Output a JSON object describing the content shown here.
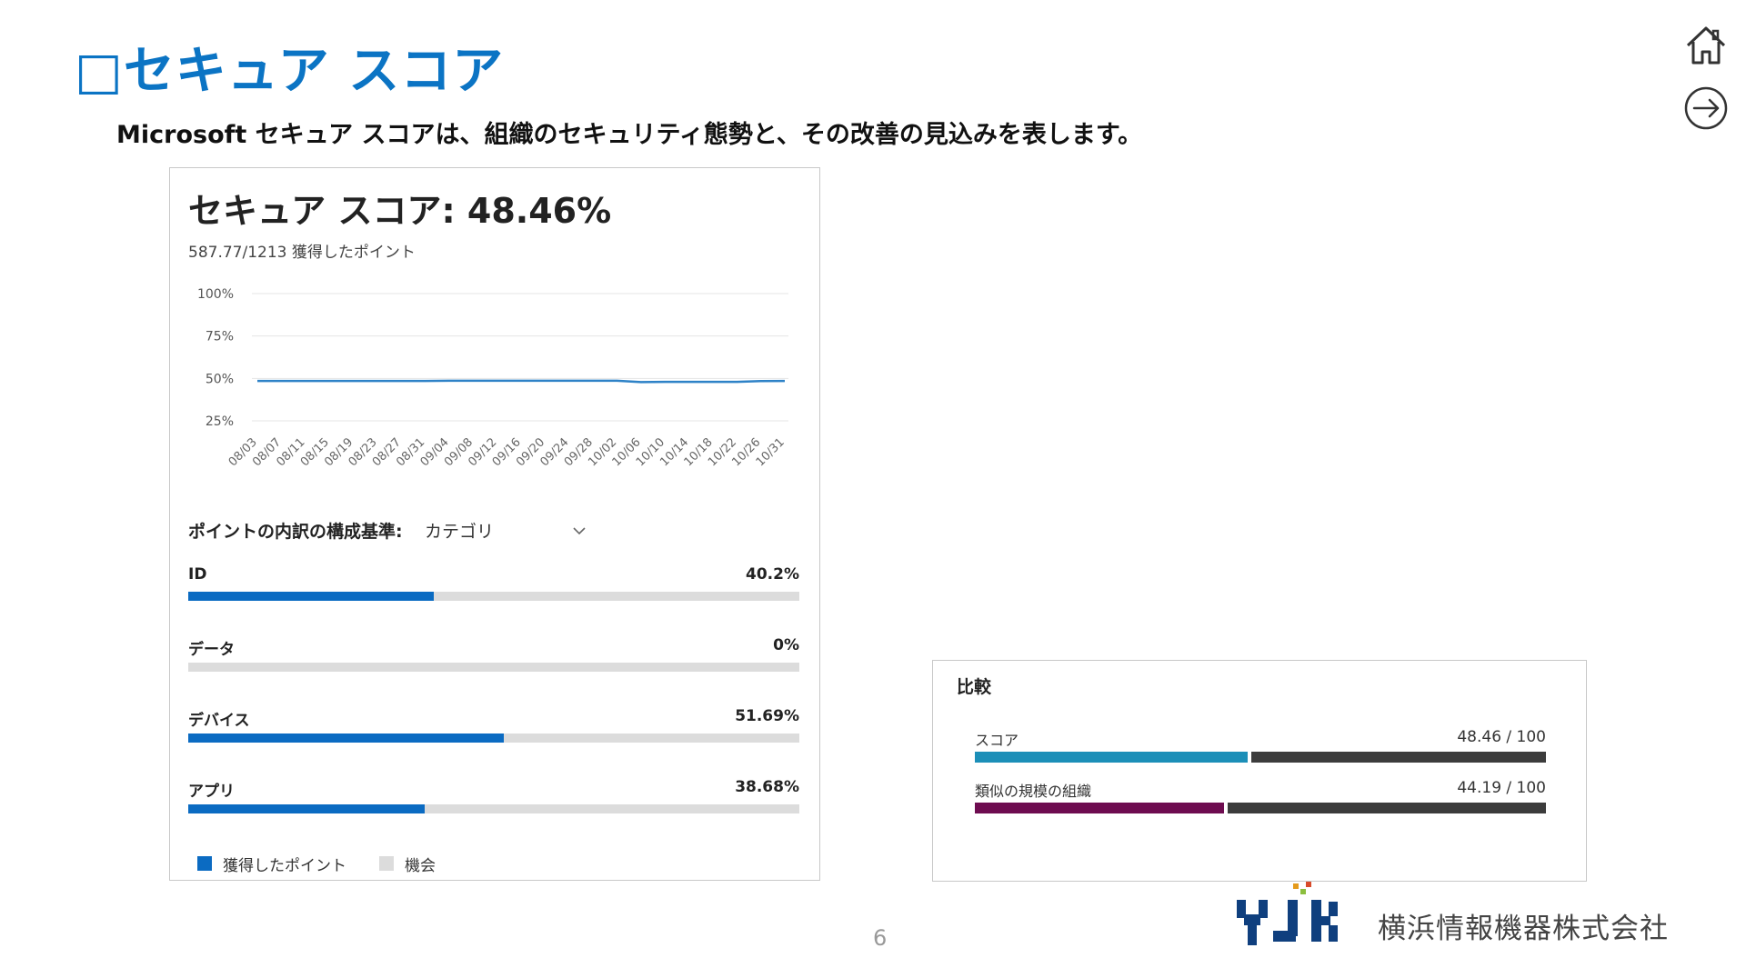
{
  "slide": {
    "title": "□セキュア スコア",
    "subtitle": "Microsoft セキュア スコアは、組織のセキュリティ態勢と、その改善の見込みを表します。",
    "page_number": "6"
  },
  "nav": {
    "home_icon": "home-icon",
    "next_icon": "arrow-right-circle-icon"
  },
  "score_card": {
    "title": "セキュア スコア: 48.46%",
    "points": "587.77/1213 獲得したポイント",
    "breakdown_label": "ポイントの内訳の構成基準:",
    "breakdown_value": "カテゴリ",
    "categories": [
      {
        "name": "ID",
        "pct_label": "40.2%",
        "value": 40.2
      },
      {
        "name": "データ",
        "pct_label": "0%",
        "value": 0
      },
      {
        "name": "デバイス",
        "pct_label": "51.69%",
        "value": 51.69
      },
      {
        "name": "アプリ",
        "pct_label": "38.68%",
        "value": 38.68
      }
    ],
    "legend": [
      {
        "label": "獲得したポイント",
        "color": "#0b6bc2"
      },
      {
        "label": "機会",
        "color": "#dcdcdc"
      }
    ]
  },
  "chart_data": {
    "type": "line",
    "title": "",
    "xlabel": "",
    "ylabel": "",
    "y_ticks": [
      "100%",
      "75%",
      "50%",
      "25%"
    ],
    "ylim": [
      25,
      100
    ],
    "grid": true,
    "color": "#2e82c7",
    "x": [
      "08/03",
      "08/07",
      "08/11",
      "08/15",
      "08/19",
      "08/23",
      "08/27",
      "08/31",
      "09/04",
      "09/08",
      "09/12",
      "09/16",
      "09/20",
      "09/24",
      "09/28",
      "10/02",
      "10/06",
      "10/10",
      "10/14",
      "10/18",
      "10/22",
      "10/26",
      "10/31"
    ],
    "series": [
      {
        "values": [
          48.5,
          48.5,
          48.5,
          48.5,
          48.5,
          48.5,
          48.5,
          48.5,
          48.6,
          48.6,
          48.6,
          48.6,
          48.6,
          48.6,
          48.6,
          48.6,
          47.8,
          48.0,
          48.0,
          48.0,
          48.0,
          48.4,
          48.5
        ]
      }
    ]
  },
  "compare_card": {
    "title": "比較",
    "rows": [
      {
        "label": "スコア",
        "value_label": "48.46 / 100",
        "value": 48.46,
        "color": "#1c8fb8"
      },
      {
        "label": "類似の規模の組織",
        "value_label": "44.19 / 100",
        "value": 44.19,
        "color": "#6e0c50"
      }
    ]
  },
  "company": {
    "name": "横浜情報機器株式会社",
    "logo_text": "YJK"
  }
}
